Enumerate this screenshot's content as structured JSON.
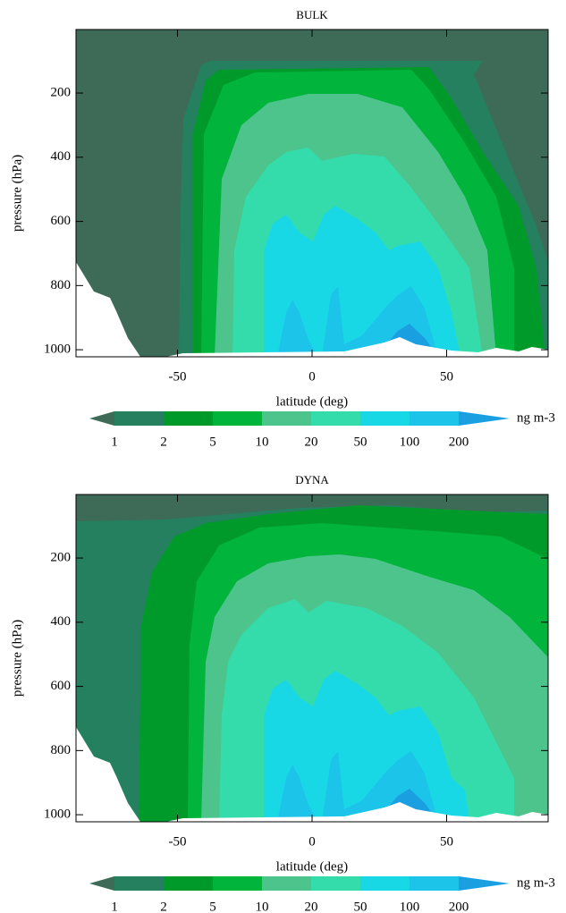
{
  "chart_data": [
    {
      "type": "contour",
      "title": "BULK",
      "xlabel": "latitude (deg)",
      "ylabel": "pressure (hPa)",
      "xlim": [
        -87.7,
        87.7
      ],
      "xticks": [
        -50,
        0,
        50
      ],
      "ylim": [
        1022,
        2
      ],
      "yticks": [
        200,
        400,
        600,
        800,
        1000
      ],
      "levels": [
        1,
        2,
        5,
        10,
        20,
        50,
        100,
        200
      ],
      "colors": [
        "#3d6b57",
        "#258060",
        "#009a2a",
        "#00b43c",
        "#4cc48c",
        "#33dcaa",
        "#19d8e6",
        "#1cc4ea",
        "#1aa0e0"
      ],
      "colorbar_label": "ng m-3"
    },
    {
      "type": "contour",
      "title": "DYNA",
      "xlabel": "latitude (deg)",
      "ylabel": "pressure (hPa)",
      "xlim": [
        -87.7,
        87.7
      ],
      "xticks": [
        -50,
        0,
        50
      ],
      "ylim": [
        1022,
        2
      ],
      "yticks": [
        200,
        400,
        600,
        800,
        1000
      ],
      "levels": [
        1,
        2,
        5,
        10,
        20,
        50,
        100,
        200
      ],
      "colors": [
        "#3d6b57",
        "#258060",
        "#009a2a",
        "#00b43c",
        "#4cc48c",
        "#33dcaa",
        "#19d8e6",
        "#1cc4ea",
        "#1aa0e0"
      ],
      "colorbar_label": "ng m-3"
    }
  ]
}
